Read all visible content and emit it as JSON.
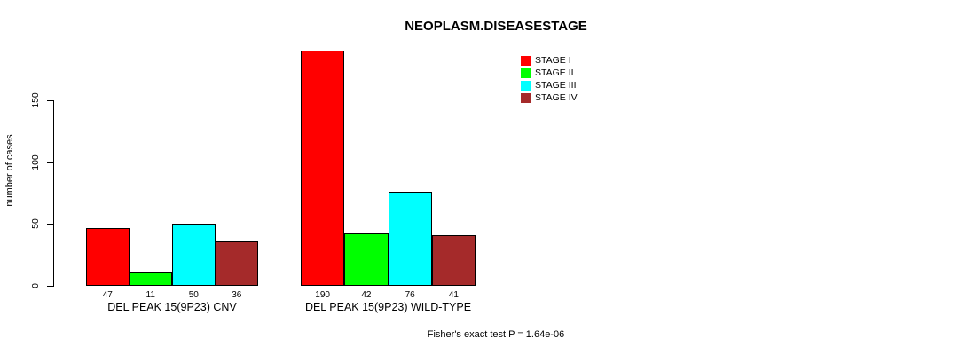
{
  "title": "NEOPLASM.DISEASESTAGE",
  "footer": "Fisher's exact test P = 1.64e-06",
  "y_axis": {
    "label": "number of cases",
    "ticks": [
      0,
      50,
      100,
      150
    ]
  },
  "legend": {
    "items": [
      {
        "label": "STAGE I",
        "color": "#FF0000"
      },
      {
        "label": "STAGE II",
        "color": "#00FF00"
      },
      {
        "label": "STAGE III",
        "color": "#00FFFF"
      },
      {
        "label": "STAGE IV",
        "color": "#A52A2A"
      }
    ]
  },
  "chart_data": {
    "type": "bar",
    "title": "NEOPLASM.DISEASESTAGE",
    "xlabel": "",
    "ylabel": "number of cases",
    "categories": [
      "DEL PEAK 15(9P23) CNV",
      "DEL PEAK 15(9P23) WILD-TYPE"
    ],
    "series": [
      {
        "name": "STAGE I",
        "color": "#FF0000",
        "values": [
          47,
          190
        ]
      },
      {
        "name": "STAGE II",
        "color": "#00FF00",
        "values": [
          11,
          42
        ]
      },
      {
        "name": "STAGE III",
        "color": "#00FFFF",
        "values": [
          50,
          76
        ]
      },
      {
        "name": "STAGE IV",
        "color": "#A52A2A",
        "values": [
          36,
          41
        ]
      }
    ],
    "y_ticks": [
      0,
      50,
      100,
      150
    ],
    "ylim": [
      0,
      195
    ],
    "grid": false,
    "legend_position": "upper-right",
    "bar_value_labels_shown": true,
    "annotation": "Fisher's exact test P = 1.64e-06"
  }
}
